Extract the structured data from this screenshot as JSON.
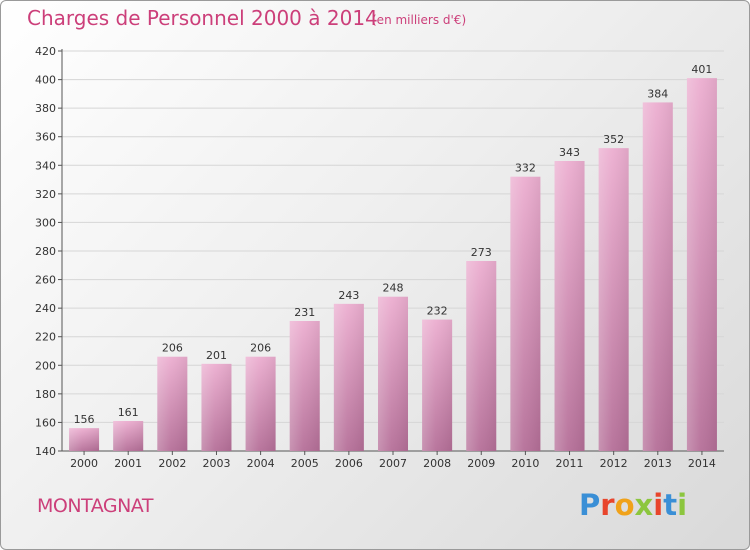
{
  "header": {
    "title": "Charges de Personnel 2000 à 2014",
    "subtitle": "(en milliers d'€)"
  },
  "footer": {
    "commune": "MONTAGNAT",
    "logo": {
      "letters": [
        "P",
        "r",
        "o",
        "x",
        "i",
        "t",
        "i"
      ],
      "colors": [
        "#3a8fd6",
        "#e8452c",
        "#f0a21a",
        "#8cc63e",
        "#e8452c",
        "#3a8fd6",
        "#8cc63e"
      ]
    }
  },
  "colors": {
    "accent": "#cc3f7a",
    "bar_top": "#ecaed0",
    "bar_bottom": "#b56f98",
    "grid": "#d6d6d6"
  },
  "chart_data": {
    "type": "bar",
    "categories": [
      "2000",
      "2001",
      "2002",
      "2003",
      "2004",
      "2005",
      "2006",
      "2007",
      "2008",
      "2009",
      "2010",
      "2011",
      "2012",
      "2013",
      "2014"
    ],
    "values": [
      156,
      161,
      206,
      201,
      206,
      231,
      243,
      248,
      232,
      273,
      332,
      343,
      352,
      384,
      401
    ],
    "ylim": [
      140,
      420
    ],
    "yticks": [
      140,
      160,
      180,
      200,
      220,
      240,
      260,
      280,
      300,
      320,
      340,
      360,
      380,
      400,
      420
    ],
    "grid": true,
    "legend": "none"
  }
}
